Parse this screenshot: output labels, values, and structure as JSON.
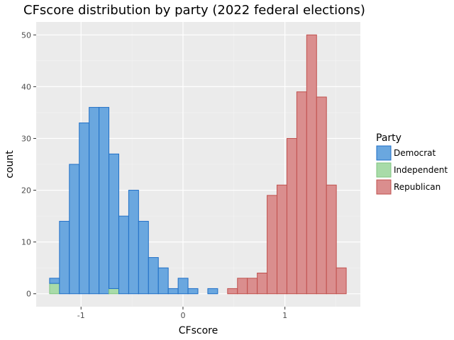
{
  "chart_data": {
    "type": "bar",
    "subtype": "stacked-histogram",
    "title": "CFscore distribution by party (2022 federal elections)",
    "xlabel": "CFscore",
    "ylabel": "count",
    "xlim": [
      -1.44,
      1.74
    ],
    "ylim": [
      -2.5,
      52.5
    ],
    "xticks": [
      -1,
      0,
      1
    ],
    "xtick_labels": [
      "-1",
      "0",
      "1"
    ],
    "yticks": [
      0,
      10,
      20,
      30,
      40,
      50
    ],
    "ytick_labels": [
      "0",
      "10",
      "20",
      "30",
      "40",
      "50"
    ],
    "bin_width": 0.097,
    "bin_centers": [
      -1.26,
      -1.163,
      -1.066,
      -0.969,
      -0.872,
      -0.775,
      -0.678,
      -0.581,
      -0.484,
      -0.387,
      -0.29,
      -0.193,
      -0.096,
      0.001,
      0.098,
      0.195,
      0.292,
      0.389,
      0.486,
      0.583,
      0.68,
      0.777,
      0.874,
      0.971,
      1.068,
      1.165,
      1.262,
      1.359,
      1.456,
      1.553
    ],
    "series": [
      {
        "name": "Independent",
        "color": "#a8dba8",
        "border": "#82c482",
        "values": [
          2,
          0,
          0,
          0,
          0,
          0,
          1,
          0,
          0,
          0,
          0,
          0,
          0,
          0,
          0,
          0,
          0,
          0,
          0,
          0,
          0,
          0,
          0,
          0,
          0,
          0,
          0,
          0,
          0,
          0
        ]
      },
      {
        "name": "Democrat",
        "color": "#6aa7df",
        "border": "#1f6fc7",
        "values": [
          1,
          14,
          25,
          33,
          36,
          36,
          26,
          15,
          20,
          14,
          7,
          5,
          1,
          3,
          1,
          0,
          1,
          0,
          0,
          0,
          0,
          0,
          0,
          0,
          0,
          0,
          0,
          0,
          0,
          0
        ]
      },
      {
        "name": "Republican",
        "color": "#da8e8e",
        "border": "#c0504d",
        "values": [
          0,
          0,
          0,
          0,
          0,
          0,
          0,
          0,
          0,
          0,
          0,
          0,
          0,
          0,
          0,
          0,
          0,
          0,
          1,
          3,
          3,
          4,
          19,
          21,
          30,
          39,
          50,
          38,
          21,
          5
        ]
      }
    ],
    "legend": {
      "title": "Party",
      "position": "right",
      "entries": [
        "Democrat",
        "Independent",
        "Republican"
      ]
    },
    "grid": true,
    "panel_background": "#ebebeb"
  }
}
